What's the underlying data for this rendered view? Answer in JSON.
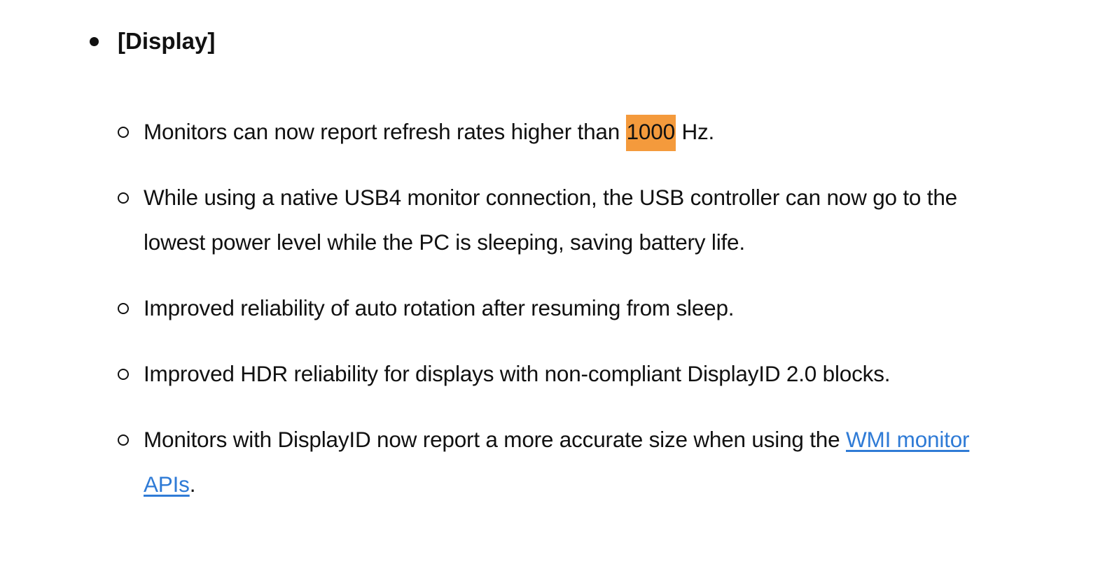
{
  "section_title": "[Display]",
  "highlight_color": "#f49a3c",
  "link_color": "#2f7bd6",
  "items": [
    {
      "before": "Monitors can now report refresh rates higher than ",
      "highlight": "1000",
      "after": " Hz."
    },
    {
      "text": "While using a native USB4 monitor connection, the USB controller can now go to the lowest power level while the PC is sleeping, saving battery life."
    },
    {
      "text": "Improved reliability of auto rotation after resuming from sleep."
    },
    {
      "text": "Improved HDR reliability for displays with non-compliant DisplayID 2.0 blocks."
    },
    {
      "before": "Monitors with DisplayID now report a more accurate size when using the ",
      "link": "WMI monitor APIs",
      "after": "."
    }
  ]
}
